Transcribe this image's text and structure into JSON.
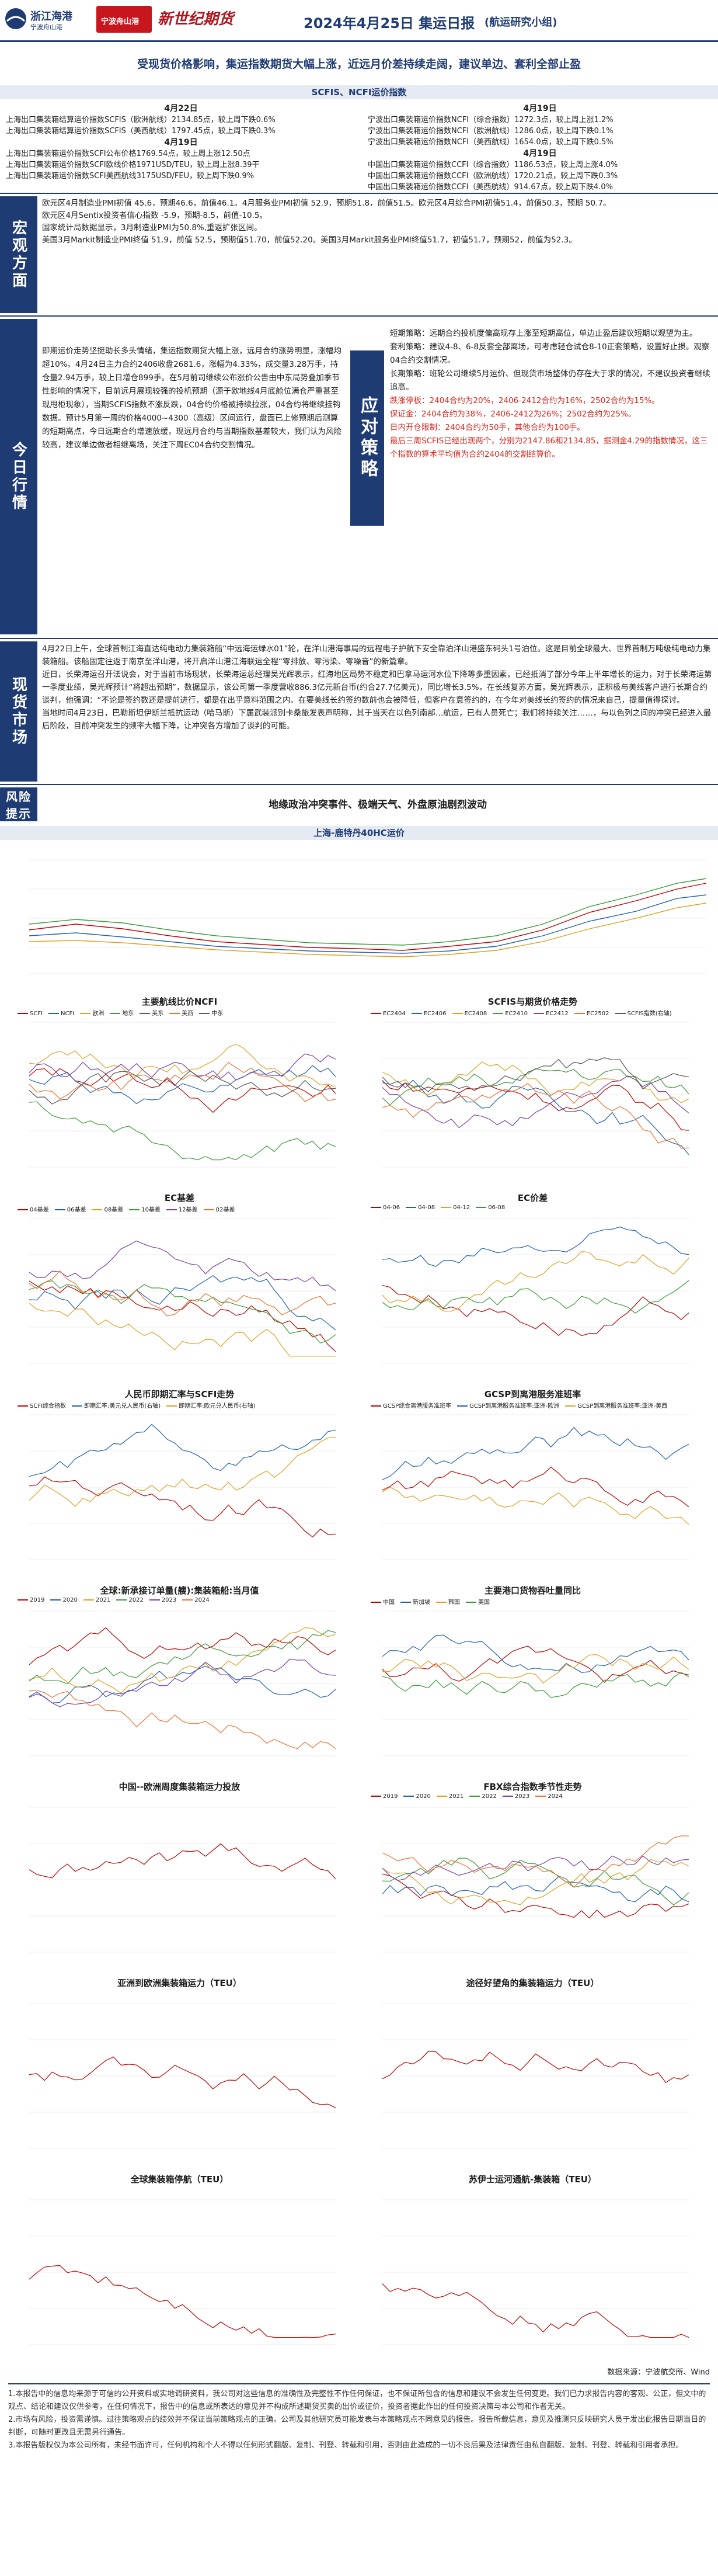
{
  "header": {
    "logo1_brand": "浙江海港",
    "logo1_sub": "宁波舟山港",
    "logo2_text": "宁波舟山港",
    "logo3_text": "新世纪期货",
    "title": "2024年4月25日 集运日报",
    "tag": "(航运研究小组)"
  },
  "headline": "受现货价格影响，集运指数期货大幅上涨，近远月价差持续走阔，建议单边、套利全部止盈",
  "scfis_bar": "SCFIS、NCFI运价指数",
  "index_left": {
    "date1": "4月22日",
    "lines1": [
      "上海出口集装箱结算运价指数SCFIS（欧洲航线）2134.85点，较上周下跌0.6%",
      "上海出口集装箱结算运价指数SCFIS（美西航线）1797.45点，较上周下跌0.3%"
    ],
    "date2": "4月19日",
    "lines2": [
      "上海出口集装箱运价指数SCFI公布价格1769.54点，较上周上涨12.50点",
      "上海出口集装箱运价指数SCFI欧线价格1971USD/TEU，较上周上涨8.39干",
      "上海出口集装箱运价指数SCFI美西航线3175USD/FEU，较上周下跌0.9%"
    ]
  },
  "index_right": {
    "date1": "4月19日",
    "lines1": [
      "宁波出口集装箱运价指数NCFI（综合指数）1272.3点，较上周上涨1.2%",
      "宁波出口集装箱运价指数NCFI（欧洲航线）1286.0点，较上周下跌0.1%",
      "宁波出口集装箱运价指数NCFI（美西航线）1654.0点，较上周下跌0.5%"
    ],
    "date2": "4月19日",
    "lines2": [
      "中国出口集装箱运价指数CCFI（综合指数）1186.53点，较上周上涨4.0%",
      "中国出口集装箱运价指数CCFI（欧洲航线）1720.21点，较上周下跌0.3%",
      "中国出口集装箱运价指数CCFI（美西航线）914.67点，较上周下跌4.0%"
    ]
  },
  "macro": {
    "label": "宏观方面",
    "lines": [
      "欧元区4月制造业PMI初值 45.6，预期46.6，前值46.1。4月服务业PMI初值 52.9，预期51.8，前值51.5。欧元区4月综合PMI初值51.4，前值50.3，预期 50.7。",
      "欧元区4月Sentix投资者信心指数 -5.9，预期-8.5，前值-10.5。",
      "国家统计局数据显示，3月制造业PMI为50.8%,重返扩张区间。",
      "美国3月Markit制造业PMI终值 51.9，前值 52.5，预期值51.70，前值52.20。美国3月Markit服务业PMI终值51.7，初值51.7，预期52，前值为52.3。"
    ]
  },
  "today": {
    "label": "今日行情",
    "text": "即期运价走势坚挺助长多头情绪，集运指数期货大幅上涨，远月合约涨势明显，涨幅均超10%。4月24日主力合约2406收盘2681.6，涨幅为4.33%，成交量3.28万手，持仓量2.94万手，较上日增仓899手。在5月前司继续公布涨价公告由中东局势叠加季节性影响的情况下，目前远月展现较强的投机预期（源于欧地线4月底舱位满仓严重甚至现甩柜现象），当期SCFIS指数不涨反跌，04合约价格被持续拉涨，04合约将继续挂钩数据。预计5月第一周的价格4000~4300（高级）区间运行，盘面已上修预期后测算的短期高点，今日远期合约增速放缓，现远月合约与当期指数基差较大，我们认为风险较高，建议单边做者相继离场，关注下周EC04合约交割情况。",
    "label2": "应对策略",
    "strategy": [
      {
        "text": "短期策略：远期合约投机度偏高现存上涨至短期高位，单边止盈后建议短期以观望为主。",
        "red": false
      },
      {
        "text": "套利策略：建议4-8、6-8反套全部离场，可考虑轻仓试仓8-10正套策略，设置好止损。观察04合约交割情况。",
        "red": false
      },
      {
        "text": "长期策略：班轮公司继续5月运价、但现货市场整体仍存在大于求的情况，不建议投资者继续追高。",
        "red": false
      },
      {
        "text": "跌涨停板：2404合约为20%，2406-2412合约为16%，2502合约为15%。",
        "red": true
      },
      {
        "text": "保证金：2404合约为38%，2406-2412为26%；2502合约为25%。",
        "red": true
      },
      {
        "text": "日内开仓限制：2404合约为50手，其他合约为100手。",
        "red": true
      },
      {
        "text": "最后三周SCFIS已经出现两个，分别为2147.86和2134.85，据测金4.29的指数情况，这三个指数的算术平均值为合约2404的交割结算价。",
        "red": true
      }
    ]
  },
  "spot": {
    "label": "现货市场",
    "lines": [
      "4月22日上午，全球首制江海直达纯电动力集装箱船“中远海运绿水01”轮，在洋山港海事局的远程电子护航下安全靠泊洋山港盛东码头1号泊位。这是目前全球最大、世界首制万吨级纯电动力集装箱船。该船固定往返于南京至洋山港，将开启洋山港江海联运全程“零排放、零污染、零噪音”的新篇章。",
      "近日，长荣海运召开法说会，对于当前市场现状，长荣海运总经理吴光辉表示，红海地区局势不稳定和巴拿马运河水位下降等多重因素，已经抵消了部分今年上半年增长的运力，对于长荣海运第一季度业绩，吴光辉预计“将超出预期”，数据显示，该公司第一季度营收886.3亿元新台币(约合27.7亿美元)，同比增长3.5%，在长线复苏方面，吴光辉表示，正积极与美线客户进行长期合约谈判，他强调：“不论是签约数还是提前进行，都是在出乎意料范围之内。在要美线长约签约数前也会被降低，但客户在意签约的，在今年对美线长约签约的情况来自己，提量值得探讨。",
      "当地时间4月23日，巴勒斯坦伊斯兰抵抗运动（哈马斯）下属武装派别卡桑旅发表声明称，其于当天在以色列南部…航运，已有人员死亡；我们将持续关注……，与以色列之间的冲突已经进入最后阶段，目前冲突发生的频率大幅下降，让冲突各方增加了谈判的可能。"
    ]
  },
  "risk": {
    "label": "风险提示",
    "text": "地缘政治冲突事件、极端天气、外盘原油剧烈波动"
  },
  "chart_bar_title": "上海-鹿特丹40HC运价",
  "charts": {
    "c1": {
      "title": "主要航线比价NCFI",
      "legend": [
        "SCFI",
        "NCFI",
        "欧洲",
        "地东",
        "美东",
        "美西",
        "中东"
      ]
    },
    "c2": {
      "title": "SCFIS与期货价格走势",
      "legend": [
        "EC2404",
        "EC2406",
        "EC2408",
        "EC2410",
        "EC2412",
        "EC2502",
        "SCFIS指数(右轴)"
      ]
    },
    "c3": {
      "title": "EC基差",
      "legend": [
        "04基差",
        "06基差",
        "08基差",
        "10基差",
        "12基差",
        "02基差"
      ]
    },
    "c4": {
      "title": "EC价差",
      "legend": [
        "04-06",
        "04-08",
        "04-12",
        "06-08"
      ]
    },
    "c5": {
      "title": "人民币即期汇率与SCFI走势",
      "legend": [
        "SCFI综合指数",
        "即期汇率:美元兑人民币(右轴)",
        "即期汇率:欧元兑人民币(右轴)"
      ]
    },
    "c6": {
      "title": "GCSP到离港服务准班率",
      "legend": [
        "GCSP综合离港服务准班率",
        "GCSP到离港服务准班率:亚洲-欧洲",
        "GCSP到离港服务准班率:亚洲-美西"
      ]
    },
    "c7": {
      "title": "全球:新承接订单量(艘):集装箱船:当月值",
      "legend": [
        "2019",
        "2020",
        "2021",
        "2022",
        "2023",
        "2024"
      ]
    },
    "c8": {
      "title": "主要港口货物吞吐量同比",
      "legend": [
        "中国",
        "新加坡",
        "韩国",
        "美国"
      ]
    },
    "c9": {
      "title": "中国--欧洲周度集装箱运力投放",
      "legend": []
    },
    "c10": {
      "title": "FBX综合指数季节性走势",
      "legend": [
        "2019",
        "2020",
        "2021",
        "2022",
        "2023",
        "2024"
      ]
    },
    "c11": {
      "title": "亚洲到欧洲集装箱运力（TEU）",
      "legend": []
    },
    "c12": {
      "title": "途径好望角的集装箱运力（TEU）",
      "legend": []
    },
    "c13": {
      "title": "全球集装箱停航（TEU）",
      "legend": []
    },
    "c14": {
      "title": "苏伊士运河通航-集装箱（TEU）",
      "legend": []
    }
  },
  "source": "数据来源：宁波航交所、Wind",
  "disclaimer": [
    "1.本报告中的信息均来源于可信的公开资料或实地调研资料，我公司对这些信息的准确性及完整性不作任何保证，也不保证所包含的信息和建议不会发生任何变更。我们已力求报告内容的客观、公正，但文中的观点、结论和建议仅供参考，在任何情况下，报告中的信息或所表达的意见并不构成所述期货买卖的出价或征价，投资者据此作出的任何投资决策与本公司和作者无关。",
    "2.市场有风险，投资需谨慎。过往策略观点的绩效并不保证当前策略观点的正确。公司及其他研究员可能发表与本策略观点不同意见的报告。报告所载信息，意见及推测只反映研究人员于发出此报告日期当日的判断，可随时更改且无需另行通告。",
    "3.本报告版权仅为本公司所有，未经书面许可，任何机构和个人不得以任何形式翻版、复制、刊登、转载和引用，否则由此造成的一切不良后果及法律责任由私自翻版、复制、刊登、转载和引用者承担。"
  ],
  "colors": {
    "navy": "#1f3b73",
    "red": "#d9261c"
  }
}
